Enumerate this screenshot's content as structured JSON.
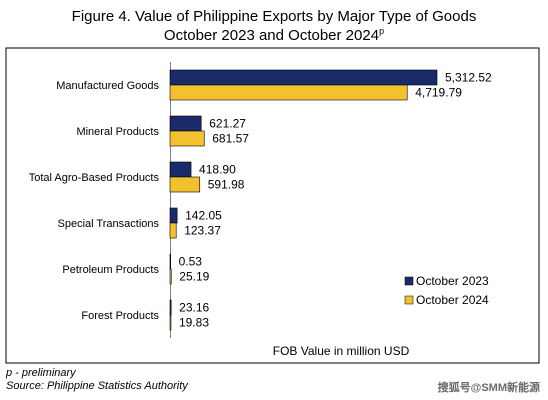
{
  "title_line1": "Figure 4. Value of Philippine Exports by Major Type of Goods",
  "title_line2": "October 2023 and October 2024",
  "title_sup": "p",
  "footnote_preliminary": "p - preliminary",
  "footnote_source": "Source: Philippine Statistics Authority",
  "watermark": "搜狐号@SMM新能源",
  "colors": {
    "series1": "#1b2a6b",
    "series2": "#f2c12e",
    "border": "#000000",
    "axis": "#7f7f7f"
  },
  "chart_data": {
    "type": "bar",
    "orientation": "horizontal",
    "categories": [
      "Manufactured Goods",
      "Mineral Products",
      "Total Agro-Based Products",
      "Special Transactions",
      "Petroleum Products",
      "Forest Products"
    ],
    "series": [
      {
        "name": "October 2023",
        "values": [
          5312.52,
          621.27,
          418.9,
          142.05,
          0.53,
          23.16
        ],
        "labels": [
          "5,312.52",
          "621.27",
          "418.90",
          "142.05",
          "0.53",
          "23.16"
        ]
      },
      {
        "name": "October 2024",
        "values": [
          4719.79,
          681.57,
          591.98,
          123.37,
          25.19,
          19.83
        ],
        "labels": [
          "4,719.79",
          "681.57",
          "591.98",
          "123.37",
          "25.19",
          "19.83"
        ]
      }
    ],
    "xlabel": "FOB Value in million USD",
    "xlim": [
      0,
      6800
    ],
    "legend_position": "bottom-right",
    "grid": false
  }
}
